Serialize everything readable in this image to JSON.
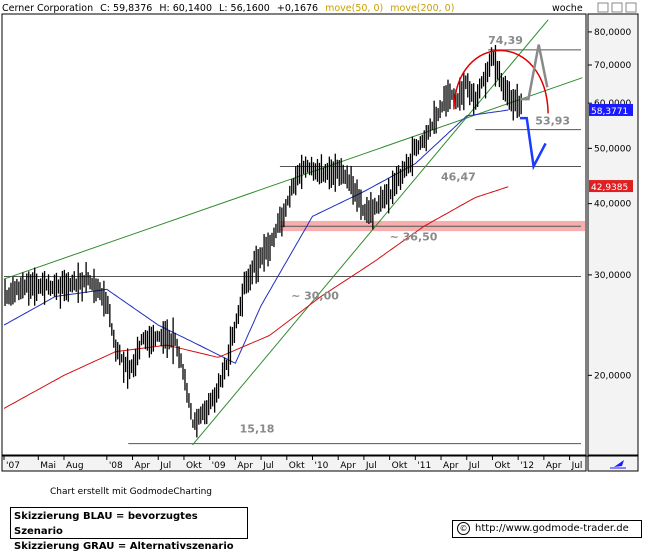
{
  "header": {
    "title": "Cerner Corporation",
    "close": "C: 59,8376",
    "high": "H: 60,1400",
    "low": "L: 56,1600",
    "change": "+0,1676",
    "ma50": "move(50, 0)",
    "ma200": "move(200, 0)",
    "period": "woche"
  },
  "colors": {
    "ma50": "#1f2fbf",
    "ma200": "#d01010",
    "trendline": "#2e8b2e",
    "scenario_blue": "#1a3cff",
    "scenario_gray": "#8a8a8a",
    "zone": "#f4a0a0",
    "price_tag": "#1a1aff",
    "ma200_tag": "#e02020",
    "header_ma": "#c8a000"
  },
  "footer": {
    "credit": "Chart erstellt mit GodmodeCharting",
    "legend_blue": "Skizzierung BLAU = bevorzugtes Szenario",
    "legend_gray": "Skizzierung GRAU = Alternativszenario",
    "copyright": "©",
    "url": "http://www.godmode-trader.de"
  },
  "chart_data": {
    "type": "line",
    "title": "Cerner Corporation",
    "scale": "log",
    "ylim": [
      14.5,
      86
    ],
    "y_ticks": [
      "20,0000",
      "30,0000",
      "40,0000",
      "50,0000",
      "60,0000",
      "70,0000",
      "80,0000"
    ],
    "y_tick_values": [
      20,
      30,
      40,
      50,
      60,
      70,
      80
    ],
    "x_ticks": [
      "'07",
      "Mai",
      "Aug",
      "'08",
      "Apr",
      "Jul",
      "Okt",
      "'09",
      "Apr",
      "Jul",
      "Okt",
      "'10",
      "Apr",
      "Jul",
      "Okt",
      "'11",
      "Apr",
      "Jul",
      "Okt",
      "'12",
      "Apr",
      "Jul"
    ],
    "x_tick_dates": [
      "2007-01",
      "2007-05",
      "2007-08",
      "2008-01",
      "2008-04",
      "2008-07",
      "2008-10",
      "2009-01",
      "2009-04",
      "2009-07",
      "2009-10",
      "2010-01",
      "2010-04",
      "2010-07",
      "2010-10",
      "2011-01",
      "2011-04",
      "2011-07",
      "2011-10",
      "2012-01",
      "2012-04",
      "2012-07"
    ],
    "price_tag": "58,3771",
    "ma200_tag": "42,9385",
    "levels": [
      {
        "label": "74,39",
        "value": 74.39
      },
      {
        "label": "53,93",
        "value": 53.93
      },
      {
        "label": "46,47",
        "value": 46.47
      },
      {
        "label": "~ 36,50",
        "value": 36.5
      },
      {
        "label": "~ 30,00",
        "value": 29.8
      },
      {
        "label": "15,18",
        "value": 15.18
      }
    ],
    "support_zone": [
      35.8,
      37.3
    ],
    "series": [
      {
        "name": "Cerner Corporation",
        "x": [
          "2007-01",
          "2007-03",
          "2007-05",
          "2007-07",
          "2007-09",
          "2007-11",
          "2008-01",
          "2008-02",
          "2008-03",
          "2008-04",
          "2008-05",
          "2008-07",
          "2008-09",
          "2008-10",
          "2008-11",
          "2008-12",
          "2009-01",
          "2009-02",
          "2009-03",
          "2009-04",
          "2009-05",
          "2009-06",
          "2009-08",
          "2009-10",
          "2009-11",
          "2009-12",
          "2010-02",
          "2010-04",
          "2010-06",
          "2010-07",
          "2010-08",
          "2010-10",
          "2010-12",
          "2011-01",
          "2011-03",
          "2011-05",
          "2011-06",
          "2011-07",
          "2011-08",
          "2011-09",
          "2011-10",
          "2011-11",
          "2011-12",
          "2012-01"
        ],
        "values": [
          27.5,
          28.5,
          28.8,
          28.5,
          29.0,
          29.5,
          27.0,
          22.5,
          21.0,
          20.5,
          23.0,
          23.5,
          23.0,
          20.0,
          16.5,
          17.0,
          18.0,
          19.0,
          21.0,
          24.5,
          28.5,
          31.0,
          33.5,
          40.0,
          44.0,
          46.5,
          45.0,
          46.0,
          42.0,
          38.5,
          39.0,
          41.5,
          46.5,
          50.0,
          55.0,
          62.5,
          60.5,
          65.0,
          61.0,
          66.0,
          73.0,
          66.0,
          61.0,
          59.8
        ]
      },
      {
        "name": "move(50, 0)",
        "x": [
          "2007-01",
          "2007-07",
          "2008-01",
          "2008-07",
          "2008-12",
          "2009-04",
          "2009-07",
          "2010-01",
          "2010-07",
          "2011-01",
          "2011-07",
          "2011-12"
        ],
        "values": [
          24.5,
          27.5,
          28.3,
          24.5,
          22.5,
          21.0,
          26.5,
          38.0,
          42.0,
          47.0,
          57.0,
          58.4
        ]
      },
      {
        "name": "move(200, 0)",
        "x": [
          "2007-01",
          "2007-08",
          "2008-02",
          "2008-08",
          "2009-02",
          "2009-08",
          "2010-02",
          "2010-08",
          "2011-02",
          "2011-08",
          "2011-12"
        ],
        "values": [
          17.5,
          20.0,
          22.0,
          22.6,
          21.5,
          23.5,
          27.5,
          31.5,
          36.5,
          41.0,
          42.9
        ]
      }
    ],
    "grid": false
  }
}
